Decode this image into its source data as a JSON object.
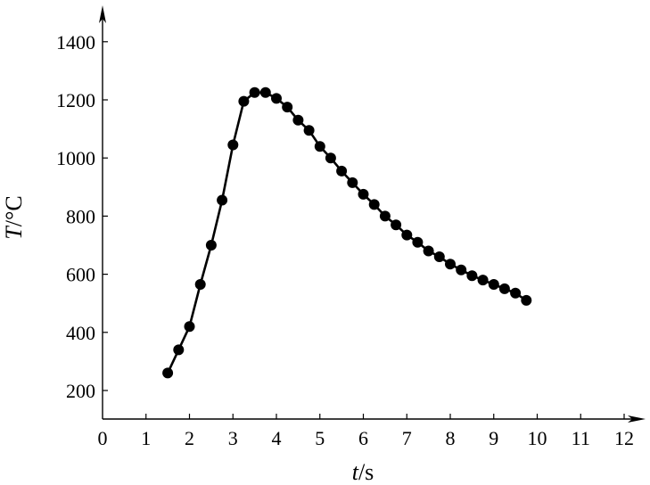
{
  "chart_data": {
    "type": "line",
    "title": "",
    "xlabel": {
      "var": "t",
      "unit": "s"
    },
    "ylabel": {
      "var": "T",
      "unit": "°C"
    },
    "xlim": [
      0,
      12.6
    ],
    "ylim": [
      100,
      1480
    ],
    "xticks": [
      0,
      1,
      2,
      3,
      4,
      5,
      6,
      7,
      8,
      9,
      10,
      11,
      12
    ],
    "yticks": [
      200,
      400,
      600,
      800,
      1000,
      1200,
      1400
    ],
    "grid": false,
    "legend": "none",
    "series": [
      {
        "x": [
          1.5,
          1.75,
          2.0,
          2.25,
          2.5,
          2.75,
          3.0,
          3.25,
          3.5,
          3.75,
          4.0,
          4.25,
          4.5,
          4.75,
          5.0,
          5.25,
          5.5,
          5.75,
          6.0,
          6.25,
          6.5,
          6.75,
          7.0,
          7.25,
          7.5,
          7.75,
          8.0,
          8.25,
          8.5,
          8.75,
          9.0,
          9.25,
          9.5,
          9.75
        ],
        "y": [
          260,
          340,
          420,
          565,
          700,
          855,
          1045,
          1195,
          1225,
          1225,
          1205,
          1175,
          1130,
          1095,
          1040,
          1000,
          955,
          915,
          875,
          840,
          800,
          770,
          735,
          710,
          680,
          660,
          635,
          615,
          595,
          580,
          565,
          550,
          535,
          510
        ]
      }
    ],
    "colors": {
      "line": "#000000",
      "marker": "#000000"
    }
  }
}
